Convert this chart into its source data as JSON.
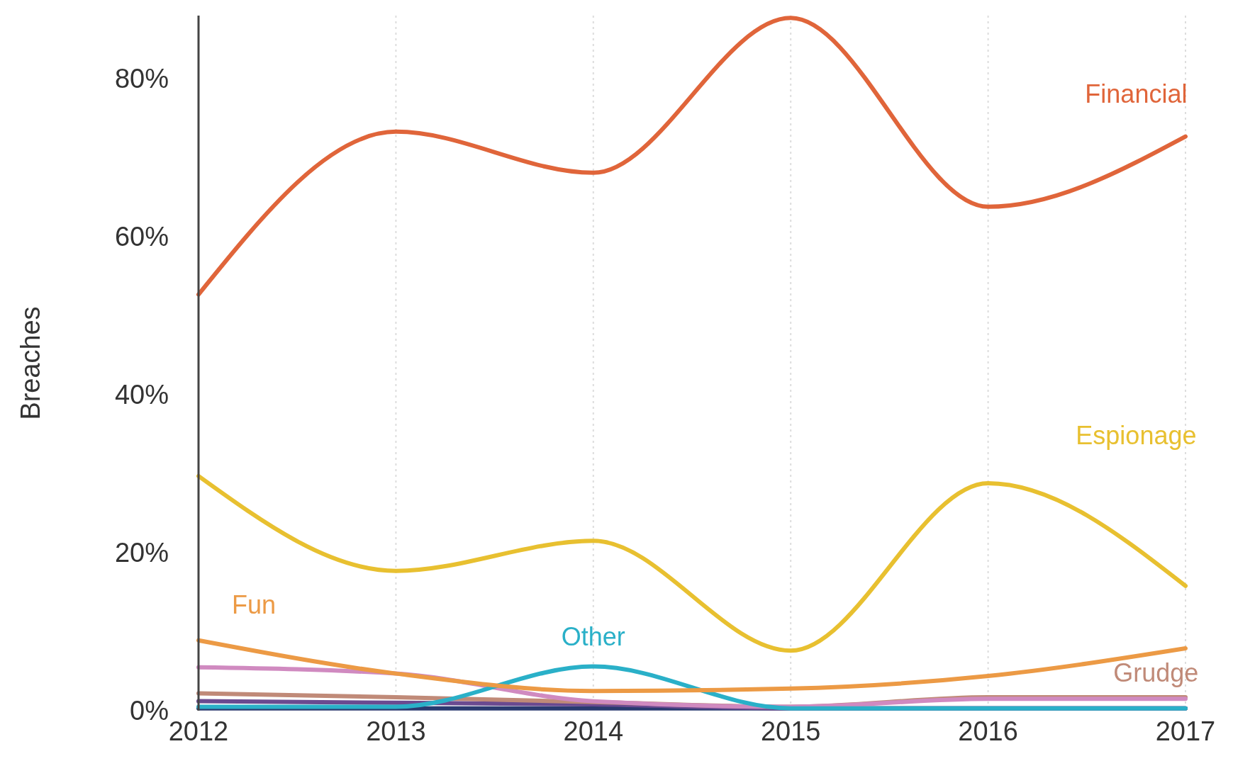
{
  "chart_data": {
    "type": "line",
    "ylabel": "Breaches",
    "x": [
      2012,
      2013,
      2014,
      2015,
      2016,
      2017
    ],
    "xlim": [
      2012,
      2017
    ],
    "xticks": [
      2012,
      2013,
      2014,
      2015,
      2016,
      2017
    ],
    "ylim": [
      0,
      88
    ],
    "yticks": [
      {
        "value": 0,
        "label": "0%"
      },
      {
        "value": 20,
        "label": "20%"
      },
      {
        "value": 40,
        "label": "40%"
      },
      {
        "value": 60,
        "label": "60%"
      },
      {
        "value": 80,
        "label": "80%"
      }
    ],
    "grid": "x",
    "marker": "none",
    "line_style": "solid",
    "series": [
      {
        "name": "Financial",
        "color": "#e0653a",
        "values": [
          52.7,
          73.3,
          68.1,
          87.7,
          63.8,
          72.7
        ]
      },
      {
        "name": "Espionage",
        "color": "#e8c030",
        "values": [
          29.7,
          17.7,
          21.5,
          7.6,
          28.8,
          15.8
        ]
      },
      {
        "name": "Fun",
        "color": "#ec9a45",
        "values": [
          8.9,
          4.7,
          2.5,
          2.8,
          4.4,
          7.9
        ]
      },
      {
        "name": "Other",
        "color": "#2ab0c8",
        "values": [
          0.5,
          0.5,
          5.6,
          0.3,
          0.3,
          0.3
        ]
      },
      {
        "color": "#d08ac0",
        "values": [
          5.5,
          4.7,
          1.2,
          0.5,
          1.5,
          1.5
        ]
      },
      {
        "name": "Grudge",
        "color": "#c08a78",
        "values": [
          2.2,
          1.7,
          1.1,
          0.5,
          1.7,
          1.7
        ]
      },
      {
        "color": "#6a4a90",
        "values": [
          1.2,
          1.0,
          0.8,
          0.3,
          0.3,
          0.3
        ]
      },
      {
        "color": "#2a3a70",
        "values": [
          0.3,
          0.3,
          0.3,
          0.3,
          0.3,
          0.3
        ]
      }
    ]
  }
}
